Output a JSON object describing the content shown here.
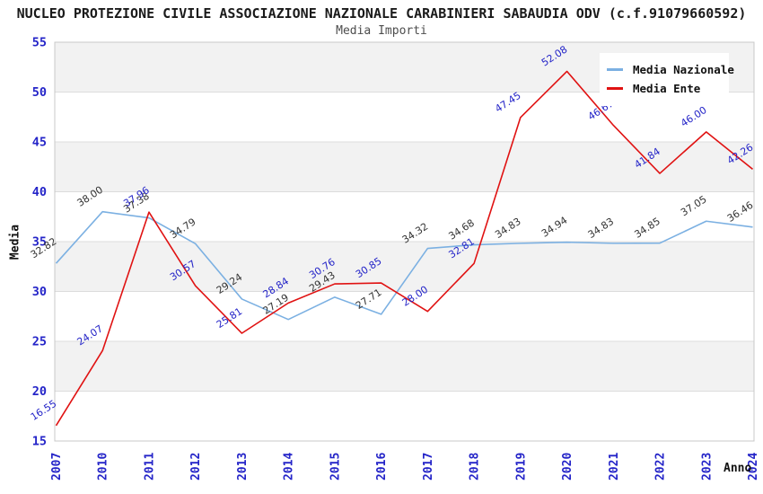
{
  "header": {
    "title": "NUCLEO PROTEZIONE CIVILE ASSOCIAZIONE NAZIONALE CARABINIERI SABAUDIA ODV (c.f.91079660592)",
    "subtitle": "Media Importi"
  },
  "axes": {
    "y_title": "Media",
    "x_title": "Anno",
    "y_ticks": [
      15,
      20,
      25,
      30,
      35,
      40,
      45,
      50,
      55
    ]
  },
  "legend": {
    "items": [
      {
        "label": "Media Nazionale",
        "color": "#7bb0e2"
      },
      {
        "label": "Media Ente",
        "color": "#e01212"
      }
    ]
  },
  "chart_data": {
    "type": "line",
    "title": "Media Importi",
    "categories": [
      "2007",
      "2010",
      "2011",
      "2012",
      "2013",
      "2014",
      "2015",
      "2016",
      "2017",
      "2018",
      "2019",
      "2020",
      "2021",
      "2022",
      "2023",
      "2024"
    ],
    "series": [
      {
        "name": "Media Nazionale",
        "color": "#7bb0e2",
        "label_color": "#333333",
        "values": [
          32.82,
          38.0,
          37.38,
          34.79,
          29.24,
          27.19,
          29.43,
          27.71,
          34.32,
          34.68,
          34.83,
          34.94,
          34.83,
          34.85,
          37.05,
          36.46
        ]
      },
      {
        "name": "Media Ente",
        "color": "#e01212",
        "label_color": "#2424c8",
        "values": [
          16.55,
          24.07,
          37.96,
          30.57,
          25.81,
          28.84,
          30.76,
          30.85,
          28.0,
          32.81,
          47.45,
          52.08,
          46.67,
          41.84,
          46.0,
          42.26
        ]
      }
    ],
    "xlabel": "Anno",
    "ylabel": "Media",
    "ylim": [
      15,
      55
    ],
    "ytick_step": 5,
    "grid": "horizontal-bands",
    "legend_position": "top-right"
  },
  "colors": {
    "axis_text": "#2424c8",
    "band": "#f2f2f2",
    "gridline": "#dcdcdc",
    "plot_border": "#c8c8c8",
    "background": "#ffffff"
  }
}
